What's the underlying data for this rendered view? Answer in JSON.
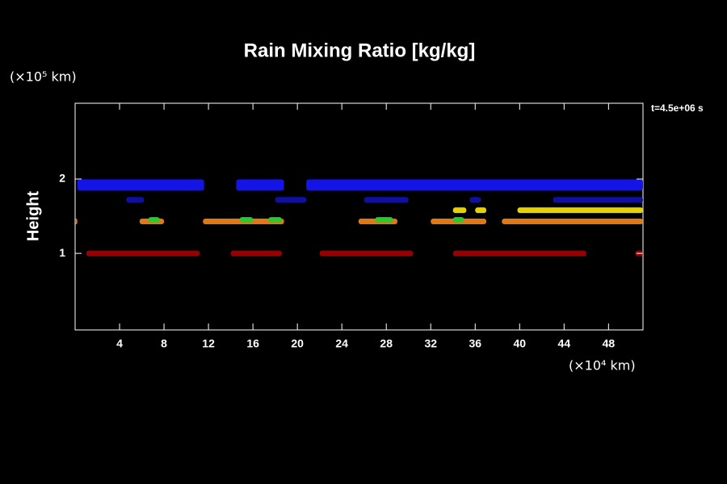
{
  "chart_data": {
    "type": "contour",
    "title": "Rain Mixing Ratio [kg/kg]",
    "ylabel": "Height",
    "y_unit": "(×10⁵ km)",
    "x_unit": "(×10⁴ km)",
    "annotation": "t=4.5e+06 s",
    "xlim": [
      0,
      51.1
    ],
    "xticks": [
      4,
      8,
      12,
      16,
      20,
      24,
      28,
      32,
      36,
      40,
      44,
      48
    ],
    "ylim": [
      -0.03,
      3.02
    ],
    "yticks": [
      1,
      2
    ],
    "regions": [
      {
        "color": "#1414e6",
        "y": 1.92,
        "segments": [
          [
            0.2,
            11.6
          ],
          [
            14.5,
            18.8
          ],
          [
            20.8,
            51.1
          ]
        ]
      },
      {
        "color": "#1010a0",
        "y": 1.72,
        "segments": [
          [
            4.6,
            6.2
          ],
          [
            18,
            20.8
          ],
          [
            26,
            30
          ],
          [
            35.5,
            36.5
          ],
          [
            43,
            51.1
          ]
        ]
      },
      {
        "color": "#e6d200",
        "y": 1.58,
        "segments": [
          [
            34,
            35.2
          ],
          [
            36,
            37
          ],
          [
            39.8,
            51.1
          ]
        ]
      },
      {
        "color": "#e07818",
        "y": 1.43,
        "segments": [
          [
            0,
            0.2
          ],
          [
            5.8,
            8
          ],
          [
            11.5,
            18.8
          ],
          [
            25.5,
            29
          ],
          [
            32,
            37
          ],
          [
            38.4,
            51.1
          ]
        ]
      },
      {
        "color": "#2ec82e",
        "y": 1.45,
        "segments": [
          [
            6.6,
            7.6
          ],
          [
            14.8,
            16
          ],
          [
            17.4,
            18.6
          ],
          [
            27,
            28.6
          ],
          [
            34,
            35
          ]
        ]
      },
      {
        "color": "#960000",
        "y": 1.0,
        "segments": [
          [
            1,
            11.2
          ],
          [
            14,
            18.6
          ],
          [
            22,
            30.4
          ],
          [
            34,
            46
          ],
          [
            50.4,
            51.1
          ]
        ]
      }
    ]
  }
}
